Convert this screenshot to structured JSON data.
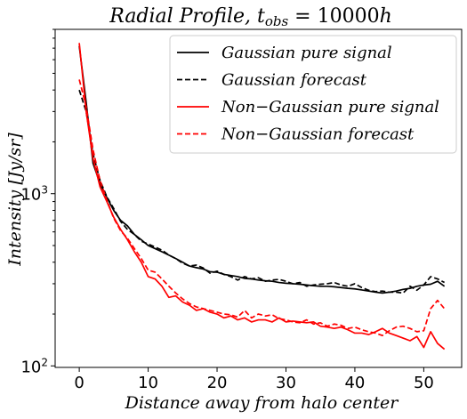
{
  "chart_data": {
    "type": "line",
    "title": "Radial Profile,  t_obs = 10000h",
    "title_parts": {
      "main": "Radial Profile,  ",
      "var": "t",
      "sub": "obs",
      "rest": " = 10000",
      "unit": "h"
    },
    "xlabel": "Distance away from halo center",
    "ylabel": "Intensity [Jy/sr]",
    "ylabel_parts": {
      "main": "Intensity [",
      "unit": "Jy/sr",
      "close": "]"
    },
    "xlim": [
      -3.5,
      55.5
    ],
    "ylim": [
      98,
      9000
    ],
    "yscale": "log",
    "x_ticks": [
      0,
      10,
      20,
      30,
      40,
      50
    ],
    "x_tick_labels": [
      "0",
      "10",
      "20",
      "30",
      "40",
      "50"
    ],
    "y_ticks": [
      100,
      1000
    ],
    "y_tick_labels": [
      {
        "base": "10",
        "exp": "2"
      },
      {
        "base": "10",
        "exp": "3"
      }
    ],
    "legend": {
      "position": "upper-right",
      "entries": [
        {
          "label": "Gaussian pure signal",
          "series": 0
        },
        {
          "label": "Gaussian forecast",
          "series": 1
        },
        {
          "label": "Non−Gaussian pure signal",
          "series": 2
        },
        {
          "label": "Non−Gaussian forecast",
          "series": 3
        }
      ]
    },
    "series": [
      {
        "name": "Gaussian pure signal",
        "color": "#000000",
        "dash": "solid",
        "x": [
          0,
          1,
          2,
          3,
          4,
          5,
          6,
          7,
          8,
          9,
          10,
          11,
          12,
          13,
          14,
          15,
          16,
          17,
          18,
          19,
          20,
          21,
          22,
          23,
          24,
          25,
          26,
          27,
          28,
          29,
          30,
          31,
          32,
          33,
          34,
          35,
          36,
          37,
          38,
          39,
          40,
          41,
          42,
          43,
          44,
          45,
          46,
          47,
          48,
          49,
          50,
          51,
          52,
          53
        ],
        "values": [
          7200,
          3400,
          1500,
          1150,
          950,
          800,
          700,
          650,
          580,
          540,
          500,
          480,
          460,
          440,
          420,
          400,
          380,
          372,
          365,
          352,
          350,
          340,
          335,
          330,
          322,
          320,
          315,
          312,
          310,
          305,
          302,
          300,
          298,
          295,
          292,
          290,
          290,
          288,
          285,
          282,
          280,
          276,
          272,
          268,
          265,
          268,
          272,
          278,
          282,
          290,
          295,
          298,
          310,
          290
        ]
      },
      {
        "name": "Gaussian forecast",
        "color": "#000000",
        "dash": "dashed",
        "x": [
          0,
          1,
          2,
          3,
          4,
          5,
          6,
          7,
          8,
          9,
          10,
          11,
          12,
          13,
          14,
          15,
          16,
          17,
          18,
          19,
          20,
          21,
          22,
          23,
          24,
          25,
          26,
          27,
          28,
          29,
          30,
          31,
          32,
          33,
          34,
          35,
          36,
          37,
          38,
          39,
          40,
          41,
          42,
          43,
          44,
          45,
          46,
          47,
          48,
          49,
          50,
          51,
          52,
          53
        ],
        "values": [
          4000,
          3000,
          1700,
          1200,
          960,
          820,
          690,
          620,
          580,
          530,
          510,
          490,
          470,
          440,
          420,
          395,
          380,
          385,
          370,
          345,
          355,
          340,
          330,
          315,
          330,
          320,
          325,
          310,
          315,
          318,
          310,
          300,
          305,
          290,
          295,
          298,
          300,
          305,
          295,
          290,
          300,
          285,
          275,
          270,
          272,
          268,
          268,
          265,
          290,
          275,
          295,
          330,
          320,
          305
        ]
      },
      {
        "name": "Non−Gaussian pure signal",
        "color": "#ff0000",
        "dash": "solid",
        "x": [
          0,
          1,
          2,
          3,
          4,
          5,
          6,
          7,
          8,
          9,
          10,
          11,
          12,
          13,
          14,
          15,
          16,
          17,
          18,
          19,
          20,
          21,
          22,
          23,
          24,
          25,
          26,
          27,
          28,
          29,
          30,
          31,
          32,
          33,
          34,
          35,
          36,
          37,
          38,
          39,
          40,
          41,
          42,
          43,
          44,
          45,
          46,
          47,
          48,
          49,
          50,
          51,
          52,
          53
        ],
        "values": [
          7500,
          3000,
          1600,
          1100,
          900,
          730,
          620,
          540,
          460,
          400,
          330,
          320,
          290,
          250,
          255,
          235,
          225,
          210,
          215,
          205,
          200,
          190,
          195,
          185,
          190,
          180,
          185,
          185,
          180,
          190,
          180,
          182,
          180,
          178,
          180,
          170,
          168,
          165,
          168,
          162,
          155,
          155,
          152,
          158,
          165,
          155,
          150,
          145,
          140,
          148,
          128,
          158,
          135,
          125
        ]
      },
      {
        "name": "Non−Gaussian forecast",
        "color": "#ff0000",
        "dash": "dashed",
        "x": [
          0,
          1,
          2,
          3,
          4,
          5,
          6,
          7,
          8,
          9,
          10,
          11,
          12,
          13,
          14,
          15,
          16,
          17,
          18,
          19,
          20,
          21,
          22,
          23,
          24,
          25,
          26,
          27,
          28,
          29,
          30,
          31,
          32,
          33,
          34,
          35,
          36,
          37,
          38,
          39,
          40,
          41,
          42,
          43,
          44,
          45,
          46,
          47,
          48,
          49,
          50,
          51,
          52,
          53
        ],
        "values": [
          4600,
          3200,
          1800,
          1200,
          920,
          720,
          610,
          550,
          480,
          420,
          360,
          350,
          320,
          290,
          265,
          245,
          230,
          220,
          215,
          210,
          205,
          200,
          198,
          192,
          210,
          190,
          200,
          195,
          198,
          188,
          185,
          180,
          178,
          185,
          175,
          178,
          170,
          175,
          172,
          165,
          168,
          162,
          158,
          155,
          150,
          160,
          168,
          170,
          165,
          158,
          160,
          215,
          240,
          215
        ]
      }
    ]
  }
}
